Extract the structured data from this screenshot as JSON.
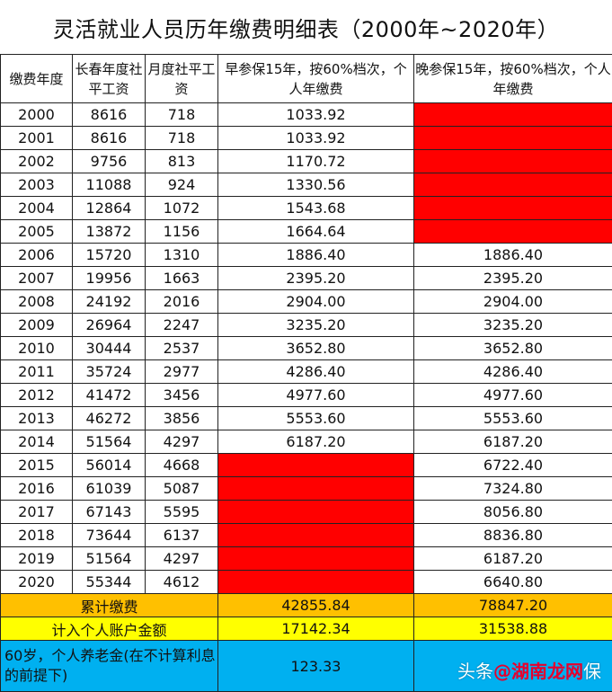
{
  "title": "灵活就业人员历年缴费明细表（2000年~2020年）",
  "headers": [
    "缴费年度",
    "长春年度社平工资",
    "月度社平工资",
    "早参保15年，按60%档次，个人年缴费",
    "晚参保15年，按60%档次，个人年缴费"
  ],
  "rows": [
    {
      "year": "2000",
      "annual": "8616",
      "monthly": "718",
      "early": "1033.92",
      "late": ""
    },
    {
      "year": "2001",
      "annual": "8616",
      "monthly": "718",
      "early": "1033.92",
      "late": ""
    },
    {
      "year": "2002",
      "annual": "9756",
      "monthly": "813",
      "early": "1170.72",
      "late": ""
    },
    {
      "year": "2003",
      "annual": "11088",
      "monthly": "924",
      "early": "1330.56",
      "late": ""
    },
    {
      "year": "2004",
      "annual": "12864",
      "monthly": "1072",
      "early": "1543.68",
      "late": ""
    },
    {
      "year": "2005",
      "annual": "13872",
      "monthly": "1156",
      "early": "1664.64",
      "late": ""
    },
    {
      "year": "2006",
      "annual": "15720",
      "monthly": "1310",
      "early": "1886.40",
      "late": "1886.40"
    },
    {
      "year": "2007",
      "annual": "19956",
      "monthly": "1663",
      "early": "2395.20",
      "late": "2395.20"
    },
    {
      "year": "2008",
      "annual": "24192",
      "monthly": "2016",
      "early": "2904.00",
      "late": "2904.00"
    },
    {
      "year": "2009",
      "annual": "26964",
      "monthly": "2247",
      "early": "3235.20",
      "late": "3235.20"
    },
    {
      "year": "2010",
      "annual": "30444",
      "monthly": "2537",
      "early": "3652.80",
      "late": "3652.80"
    },
    {
      "year": "2011",
      "annual": "35724",
      "monthly": "2977",
      "early": "4286.40",
      "late": "4286.40"
    },
    {
      "year": "2012",
      "annual": "41472",
      "monthly": "3456",
      "early": "4977.60",
      "late": "4977.60"
    },
    {
      "year": "2013",
      "annual": "46272",
      "monthly": "3856",
      "early": "5553.60",
      "late": "5553.60"
    },
    {
      "year": "2014",
      "annual": "51564",
      "monthly": "4297",
      "early": "6187.20",
      "late": "6187.20"
    },
    {
      "year": "2015",
      "annual": "56014",
      "monthly": "4668",
      "early": "",
      "late": "6722.40"
    },
    {
      "year": "2016",
      "annual": "61039",
      "monthly": "5087",
      "early": "",
      "late": "7324.80"
    },
    {
      "year": "2017",
      "annual": "67143",
      "monthly": "5595",
      "early": "",
      "late": "8056.80"
    },
    {
      "year": "2018",
      "annual": "73644",
      "monthly": "6137",
      "early": "",
      "late": "8836.80"
    },
    {
      "year": "2019",
      "annual": "51564",
      "monthly": "4297",
      "early": "",
      "late": "6187.20"
    },
    {
      "year": "2020",
      "annual": "55344",
      "monthly": "4612",
      "early": "",
      "late": "6640.80"
    }
  ],
  "summary": {
    "total": {
      "label": "累计缴费",
      "early": "42855.84",
      "late": "78847.20"
    },
    "account": {
      "label": "计入个人账户金额",
      "early": "17142.34",
      "late": "31538.88"
    },
    "pension": {
      "label": "60岁，个人养老金(在不计算利息的前提下)",
      "early": "123.33",
      "late": ""
    }
  },
  "watermark": {
    "prefix": "头条",
    "brand": "@湖南龙网",
    "suffix": "保"
  },
  "colors": {
    "not_paid": "#ff0000",
    "total_row": "#ffc000",
    "account_row": "#ffff00",
    "pension_row": "#00b0f0"
  }
}
